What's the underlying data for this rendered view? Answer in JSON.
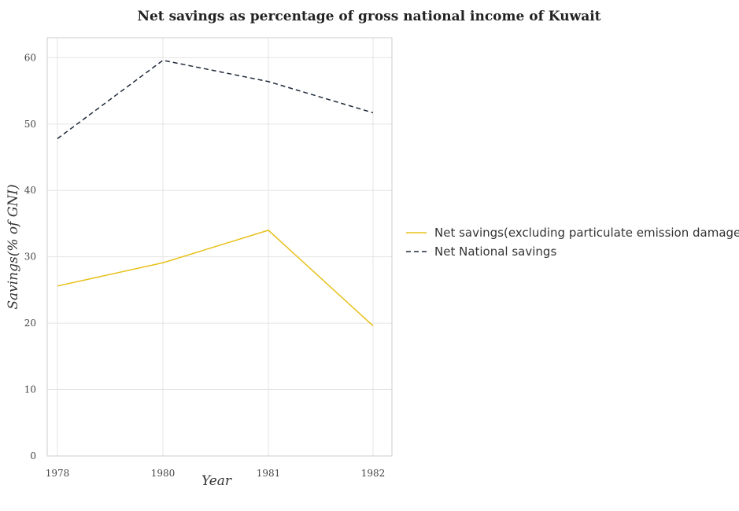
{
  "chart_data": {
    "type": "line",
    "title": "Net savings as percentage of gross national income of Kuwait",
    "xlabel": "Year",
    "ylabel": "Savings(% of GNI)",
    "categories": [
      "1978",
      "1980",
      "1981",
      "1982"
    ],
    "ylim": [
      0,
      63
    ],
    "yticks": [
      0,
      10,
      20,
      30,
      40,
      50,
      60
    ],
    "grid": true,
    "legend_position": "right",
    "series": [
      {
        "name": "Net savings(excluding particulate emission damage)",
        "color": "#e8c01a",
        "dash": "solid",
        "values": [
          25.6,
          29.1,
          34.0,
          19.6
        ]
      },
      {
        "name": "Net National savings",
        "color": "#1f2a3a",
        "dash": "dashed",
        "values": [
          47.8,
          59.6,
          56.4,
          51.7
        ]
      }
    ]
  }
}
